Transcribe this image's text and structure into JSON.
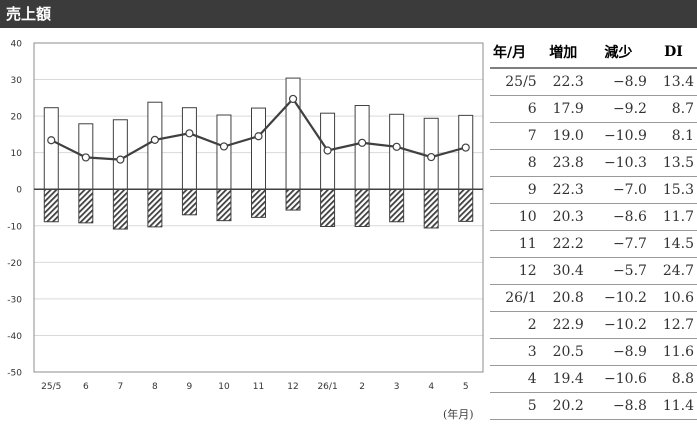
{
  "header": {
    "title": "売上額"
  },
  "table": {
    "headers": [
      "年/月",
      "増加",
      "減少",
      "DI"
    ],
    "rows": [
      [
        "25/5",
        "22.3",
        "−8.9",
        "13.4"
      ],
      [
        "6",
        "17.9",
        "−9.2",
        "8.7"
      ],
      [
        "7",
        "19.0",
        "−10.9",
        "8.1"
      ],
      [
        "8",
        "23.8",
        "−10.3",
        "13.5"
      ],
      [
        "9",
        "22.3",
        "−7.0",
        "15.3"
      ],
      [
        "10",
        "20.3",
        "−8.6",
        "11.7"
      ],
      [
        "11",
        "22.2",
        "−7.7",
        "14.5"
      ],
      [
        "12",
        "30.4",
        "−5.7",
        "24.7"
      ],
      [
        "26/1",
        "20.8",
        "−10.2",
        "10.6"
      ],
      [
        "2",
        "22.9",
        "−10.2",
        "12.7"
      ],
      [
        "3",
        "20.5",
        "−8.9",
        "11.6"
      ],
      [
        "4",
        "19.4",
        "−10.6",
        "8.8"
      ],
      [
        "5",
        "20.2",
        "−8.8",
        "11.4"
      ]
    ]
  },
  "chart_data": {
    "type": "bar",
    "title": "",
    "xlabel": "(年月)",
    "ylabel": "",
    "ylim": [
      -50,
      40
    ],
    "yticks": [
      -50,
      -40,
      -30,
      -20,
      -10,
      0,
      10,
      20,
      30,
      40
    ],
    "categories": [
      "25/5",
      "6",
      "7",
      "8",
      "9",
      "10",
      "11",
      "12",
      "26/1",
      "2",
      "3",
      "4",
      "5"
    ],
    "series": [
      {
        "values": [
          22.3,
          17.9,
          19.0,
          23.8,
          22.3,
          20.3,
          22.2,
          30.4,
          20.8,
          22.9,
          20.5,
          19.4,
          20.2
        ],
        "style": "bar-white"
      },
      {
        "values": [
          -8.9,
          -9.2,
          -10.9,
          -10.3,
          -7.0,
          -8.6,
          -7.7,
          -5.7,
          -10.2,
          -10.2,
          -8.9,
          -10.6,
          -8.8
        ],
        "style": "bar-hatched"
      },
      {
        "values": [
          13.4,
          8.7,
          8.1,
          13.5,
          15.3,
          11.7,
          14.5,
          24.7,
          10.6,
          12.7,
          11.6,
          8.8,
          11.4
        ],
        "style": "line-markers"
      }
    ],
    "grid": true,
    "colors": {
      "line": "#404040",
      "grid": "#d9d9d9",
      "bar_border": "#404040"
    }
  }
}
